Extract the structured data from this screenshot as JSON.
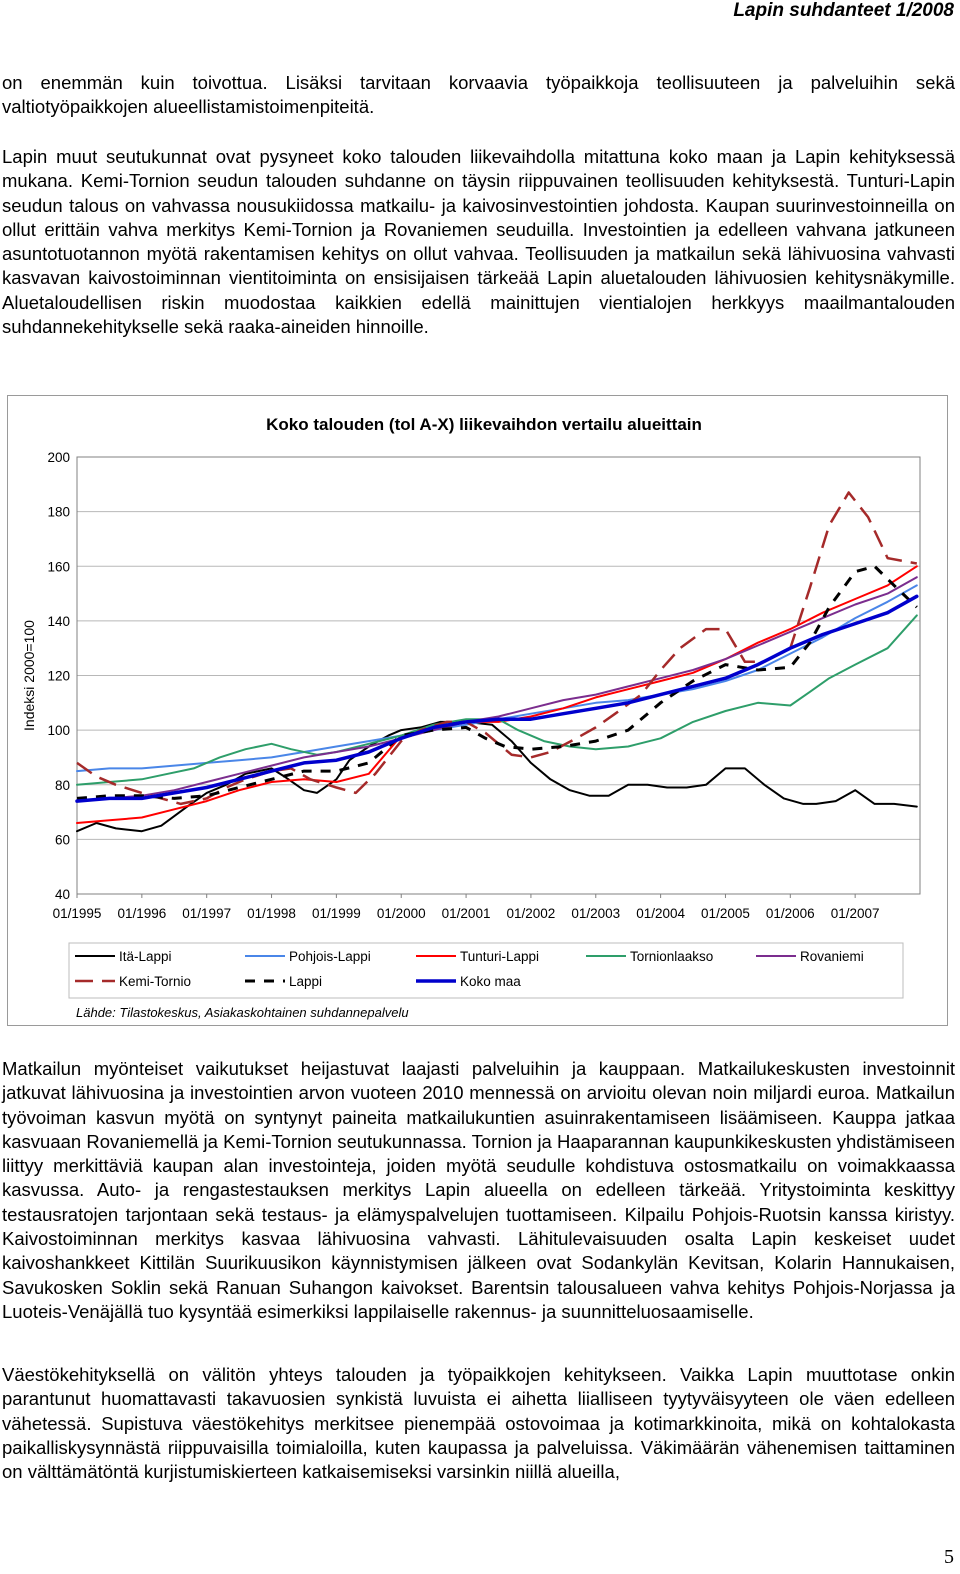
{
  "header": {
    "title": "Lapin suhdanteet 1/2008"
  },
  "paragraphs": {
    "p1": "on enemmän kuin toivottua. Lisäksi tarvitaan korvaavia työpaikkoja teollisuuteen ja palveluihin sekä valtiotyöpaikkojen alueellistamistoimenpiteitä.",
    "p2": "Lapin muut seutukunnat ovat pysyneet koko talouden liikevaihdolla mitattuna koko maan ja Lapin kehityksessä mukana. Kemi-Tornion seudun talouden suhdanne on täysin riippuvainen teollisuuden kehityksestä. Tunturi-Lapin seudun talous on vahvassa nousukiidossa matkailu- ja kaivosinvestointien johdosta. Kaupan suurinvestoinneilla on ollut erittäin vahva merkitys Kemi-Tornion ja Rovaniemen seuduilla. Investointien ja edelleen vahvana jatkuneen asuntotuotannon myötä rakentamisen kehitys on ollut vahvaa. Teollisuuden ja matkailun sekä lähivuosina vahvasti kasvavan kaivostoiminnan vientitoiminta on ensisijaisen tärkeää Lapin aluetalouden lähivuosien kehitysnäkymille. Aluetaloudellisen riskin muodostaa kaikkien edellä mainittujen vientialojen herkkyys maailmantalouden suhdannekehitykselle sekä raaka-aineiden hinnoille.",
    "p3": "Matkailun myönteiset vaikutukset heijastuvat laajasti palveluihin ja kauppaan. Matkailukeskusten investoinnit jatkuvat lähivuosina ja investointien arvon vuoteen 2010 mennessä on arvioitu olevan noin miljardi euroa. Matkailun työvoiman kasvun myötä on syntynyt paineita matkailukuntien asuinrakentamiseen lisäämiseen. Kauppa jatkaa kasvuaan Rovaniemellä ja Kemi-Tornion seutukunnassa. Tornion ja Haaparannan kaupunkikeskusten yhdistämiseen liittyy merkittäviä kaupan alan investointeja, joiden myötä seudulle kohdistuva ostosmatkailu on voimakkaassa kasvussa. Auto- ja rengastestauksen merkitys Lapin alueella on edelleen tärkeää. Yritystoiminta keskittyy testausratojen tarjontaan sekä testaus- ja elämyspalvelujen tuottamiseen. Kilpailu Pohjois-Ruotsin kanssa kiristyy. Kaivostoiminnan merkitys kasvaa lähivuosina vahvasti. Lähitulevaisuuden osalta Lapin keskeiset uudet kaivoshankkeet Kittilän Suurikuusikon käynnistymisen jälkeen ovat Sodankylän Kevitsan, Kolarin Hannukaisen, Savukosken Soklin sekä Ranuan Suhangon kaivokset. Barentsin talousalueen vahva kehitys Pohjois-Norjassa ja Luoteis-Venäjällä tuo kysyntää esimerkiksi lappilaiselle rakennus- ja suunnitteluosaamiselle.",
    "p4": "Väestökehityksellä on välitön yhteys talouden ja työpaikkojen kehitykseen. Vaikka Lapin muuttotase onkin parantunut huomattavasti takavuosien synkistä luvuista ei aihetta liialliseen tyytyväisyyteen ole väen edelleen vähetessä. Supistuva väestökehitys merkitsee pienempää ostovoimaa ja kotimarkkinoita, mikä on kohtalokasta paikalliskysynnästä riippuvaisilla toimialoilla, kuten kaupassa ja palveluissa. Väkimäärän vähenemisen taittaminen on välttämätöntä kurjistumiskierteen katkaisemiseksi varsinkin niillä alueilla,"
  },
  "page_number": "5",
  "chart_data": {
    "type": "line",
    "title": "Koko talouden (tol A-X) liikevaihdon vertailu alueittain",
    "ylabel": "Indeksi 2000=100",
    "xlabel": "",
    "ylim": [
      40,
      200
    ],
    "yticks": [
      "200",
      "180",
      "160",
      "140",
      "120",
      "100",
      "80",
      "60",
      "40"
    ],
    "x_tick_labels": [
      "01/1995",
      "01/1996",
      "01/1997",
      "01/1998",
      "01/1999",
      "01/2000",
      "01/2001",
      "01/2002",
      "01/2003",
      "01/2004",
      "01/2005",
      "01/2006",
      "01/2007"
    ],
    "x_range": [
      1995.0,
      2008.0
    ],
    "grid": "horizontal",
    "source": "Lähde: Tilastokeskus, Asiakaskohtainen suhdannepalvelu",
    "legend_position": "bottom",
    "series": [
      {
        "name": "Itä-Lappi",
        "color": "#000000",
        "dash": "solid",
        "width": 2,
        "x": [
          1995.0,
          1995.3,
          1995.6,
          1996.0,
          1996.3,
          1996.7,
          1997.0,
          1997.3,
          1997.6,
          1998.0,
          1998.2,
          1998.5,
          1998.7,
          1999.0,
          1999.2,
          1999.5,
          1999.8,
          2000.0,
          2000.3,
          2000.6,
          2001.0,
          2001.4,
          2001.7,
          2002.0,
          2002.3,
          2002.6,
          2002.9,
          2003.2,
          2003.5,
          2003.8,
          2004.1,
          2004.4,
          2004.7,
          2005.0,
          2005.3,
          2005.6,
          2005.9,
          2006.2,
          2006.4,
          2006.7,
          2007.0,
          2007.3,
          2007.6,
          2007.95
        ],
        "values": [
          63,
          66,
          64,
          63,
          65,
          72,
          77,
          80,
          84,
          86,
          83,
          78,
          77,
          82,
          89,
          94,
          98,
          100,
          101,
          103,
          103,
          102,
          96,
          88,
          82,
          78,
          76,
          76,
          80,
          80,
          79,
          79,
          80,
          86,
          86,
          80,
          75,
          73,
          73,
          74,
          78,
          73,
          73,
          72
        ]
      },
      {
        "name": "Pohjois-Lappi",
        "color": "#4a86e8",
        "dash": "solid",
        "width": 2,
        "x": [
          1995.0,
          1995.5,
          1996.0,
          1996.5,
          1997.0,
          1997.5,
          1998.0,
          1998.5,
          1999.0,
          1999.5,
          2000.0,
          2000.5,
          2001.0,
          2001.5,
          2002.0,
          2002.5,
          2003.0,
          2003.5,
          2004.0,
          2004.5,
          2005.0,
          2005.5,
          2006.0,
          2006.5,
          2007.0,
          2007.5,
          2007.95
        ],
        "values": [
          85,
          86,
          86,
          87,
          88,
          89,
          90,
          92,
          94,
          96,
          98,
          100,
          102,
          104,
          106,
          108,
          110,
          111,
          113,
          115,
          118,
          122,
          128,
          134,
          141,
          147,
          153
        ]
      },
      {
        "name": "Tunturi-Lappi",
        "color": "#ff0000",
        "dash": "solid",
        "width": 2,
        "x": [
          1995.0,
          1995.5,
          1996.0,
          1996.5,
          1997.0,
          1997.5,
          1998.0,
          1998.5,
          1999.0,
          1999.5,
          2000.0,
          2000.5,
          2001.0,
          2001.5,
          2002.0,
          2002.5,
          2003.0,
          2003.5,
          2004.0,
          2004.5,
          2005.0,
          2005.5,
          2006.0,
          2006.5,
          2007.0,
          2007.5,
          2007.95
        ],
        "values": [
          66,
          67,
          68,
          71,
          74,
          78,
          81,
          82,
          81,
          84,
          98,
          101,
          103,
          103,
          105,
          108,
          112,
          115,
          118,
          121,
          126,
          132,
          137,
          143,
          148,
          153,
          160
        ]
      },
      {
        "name": "Tornionlaakso",
        "color": "#2e9e6a",
        "dash": "solid",
        "width": 2,
        "x": [
          1995.0,
          1995.5,
          1996.0,
          1996.4,
          1996.8,
          1997.2,
          1997.6,
          1998.0,
          1998.3,
          1998.7,
          1999.0,
          1999.5,
          2000.0,
          2000.5,
          2001.0,
          2001.5,
          2001.8,
          2002.2,
          2002.6,
          2003.0,
          2003.5,
          2004.0,
          2004.5,
          2005.0,
          2005.5,
          2006.0,
          2006.3,
          2006.6,
          2007.0,
          2007.5,
          2007.95
        ],
        "values": [
          80,
          81,
          82,
          84,
          86,
          90,
          93,
          95,
          93,
          91,
          92,
          95,
          98,
          102,
          104,
          104,
          100,
          96,
          94,
          93,
          94,
          97,
          103,
          107,
          110,
          109,
          114,
          119,
          124,
          130,
          142
        ]
      },
      {
        "name": "Rovaniemi",
        "color": "#7b2d8e",
        "dash": "solid",
        "width": 2,
        "x": [
          1995.0,
          1995.5,
          1996.0,
          1996.5,
          1997.0,
          1997.5,
          1998.0,
          1998.5,
          1999.0,
          1999.5,
          2000.0,
          2000.5,
          2001.0,
          2001.5,
          2002.0,
          2002.5,
          2003.0,
          2003.5,
          2004.0,
          2004.5,
          2005.0,
          2005.5,
          2006.0,
          2006.5,
          2007.0,
          2007.5,
          2007.95
        ],
        "values": [
          74,
          75,
          76,
          78,
          81,
          84,
          87,
          90,
          92,
          94,
          97,
          100,
          103,
          105,
          108,
          111,
          113,
          116,
          119,
          122,
          126,
          131,
          136,
          141,
          146,
          150,
          156
        ]
      },
      {
        "name": "Kemi-Tornio",
        "color": "#a52a2a",
        "dash": "long",
        "width": 2.5,
        "x": [
          1995.0,
          1995.3,
          1995.6,
          1996.0,
          1996.3,
          1996.6,
          1997.0,
          1997.3,
          1997.6,
          1998.0,
          1998.3,
          1998.6,
          1999.0,
          1999.3,
          1999.6,
          2000.0,
          2000.3,
          2000.7,
          2001.0,
          2001.3,
          2001.7,
          2002.0,
          2002.3,
          2002.7,
          2003.0,
          2003.3,
          2003.7,
          2004.0,
          2004.3,
          2004.7,
          2005.0,
          2005.3,
          2005.6,
          2006.0,
          2006.3,
          2006.6,
          2006.9,
          2007.2,
          2007.5,
          2007.95
        ],
        "values": [
          88,
          83,
          80,
          77,
          75,
          73,
          75,
          79,
          82,
          85,
          86,
          82,
          79,
          77,
          84,
          96,
          100,
          103,
          103,
          99,
          91,
          90,
          92,
          97,
          101,
          106,
          113,
          122,
          130,
          137,
          137,
          125,
          125,
          130,
          152,
          175,
          187,
          178,
          163,
          161
        ]
      },
      {
        "name": "Lappi",
        "color": "#000000",
        "dash": "dash",
        "width": 3,
        "x": [
          1995.0,
          1995.5,
          1996.0,
          1996.5,
          1997.0,
          1997.5,
          1998.0,
          1998.5,
          1999.0,
          1999.5,
          2000.0,
          2000.5,
          2001.0,
          2001.3,
          2001.6,
          2002.0,
          2002.5,
          2003.0,
          2003.5,
          2004.0,
          2004.5,
          2005.0,
          2005.5,
          2006.0,
          2006.3,
          2006.6,
          2007.0,
          2007.3,
          2007.6,
          2007.95
        ],
        "values": [
          75,
          76,
          76,
          75,
          76,
          79,
          82,
          85,
          85,
          88,
          98,
          100,
          101,
          97,
          94,
          93,
          94,
          96,
          100,
          110,
          118,
          124,
          122,
          123,
          132,
          145,
          158,
          160,
          153,
          145
        ]
      },
      {
        "name": "Koko maa",
        "color": "#0000cc",
        "dash": "solid",
        "width": 3.5,
        "x": [
          1995.0,
          1995.5,
          1996.0,
          1996.5,
          1997.0,
          1997.5,
          1998.0,
          1998.5,
          1999.0,
          1999.5,
          2000.0,
          2000.5,
          2001.0,
          2001.5,
          2002.0,
          2002.5,
          2003.0,
          2003.5,
          2004.0,
          2004.5,
          2005.0,
          2005.5,
          2006.0,
          2006.5,
          2007.0,
          2007.5,
          2007.95
        ],
        "values": [
          74,
          75,
          75,
          77,
          79,
          82,
          85,
          88,
          89,
          92,
          97,
          101,
          103,
          104,
          104,
          106,
          108,
          110,
          113,
          116,
          119,
          124,
          130,
          135,
          139,
          143,
          149
        ]
      }
    ]
  }
}
